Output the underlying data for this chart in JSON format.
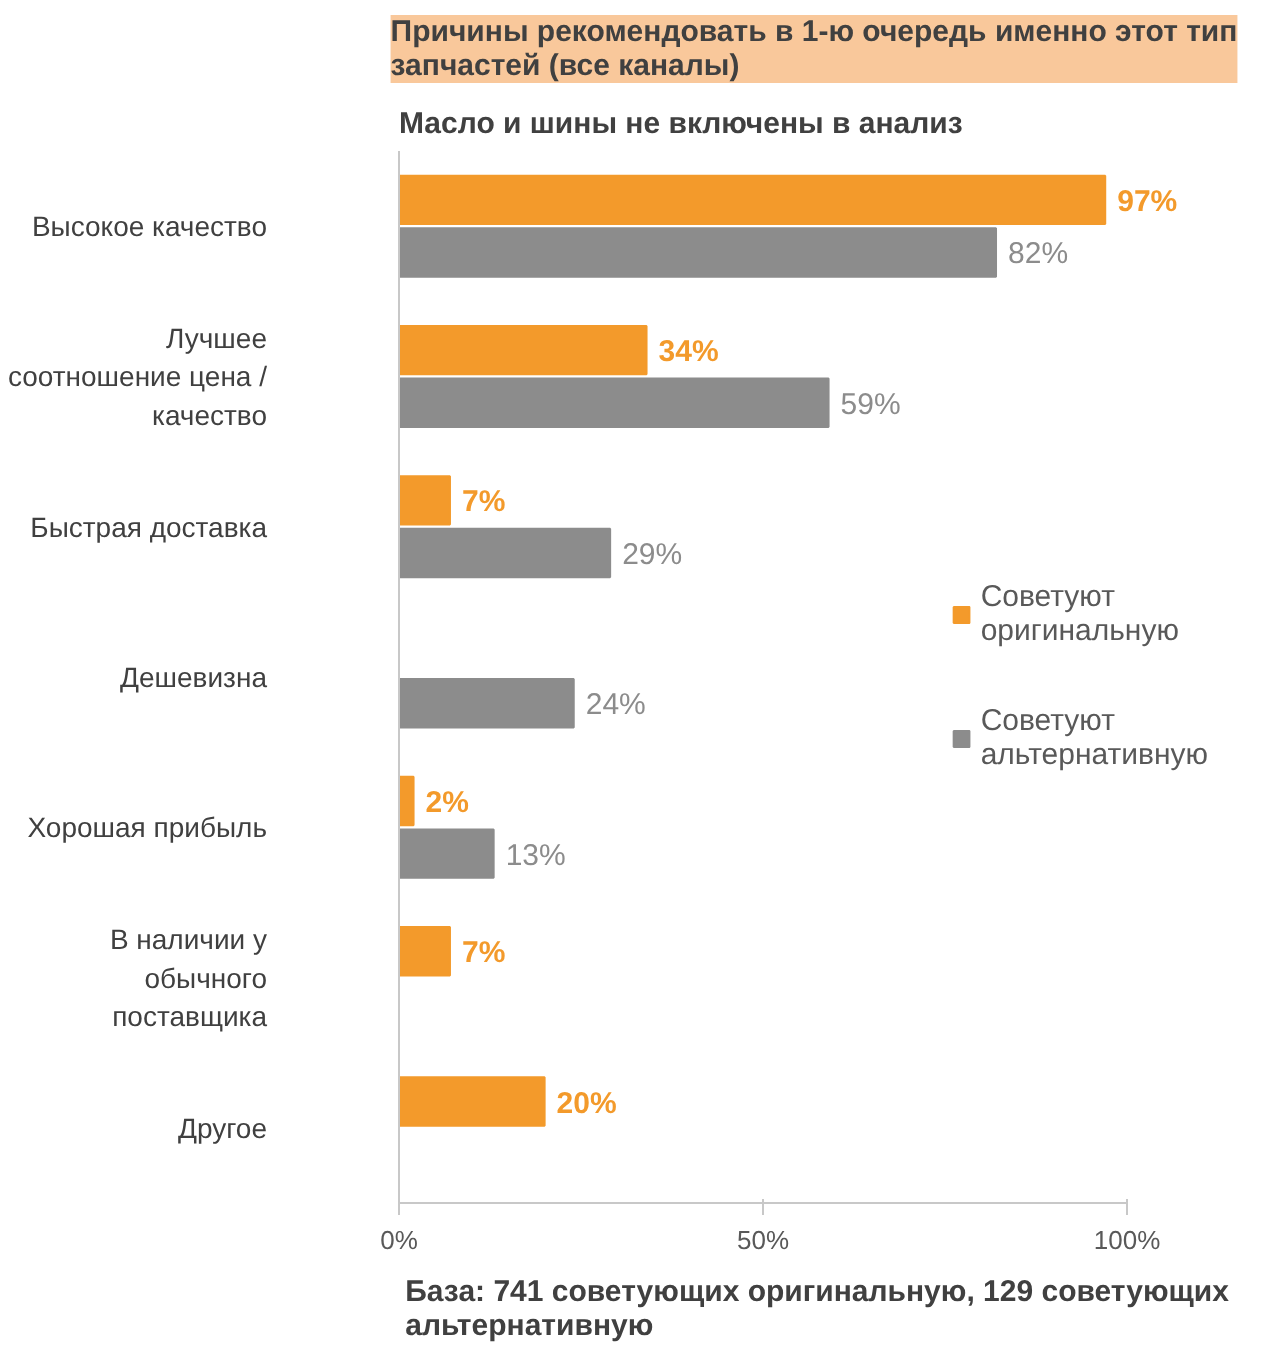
{
  "chart_data": {
    "type": "bar",
    "orientation": "horizontal",
    "title": "Причины рекомендовать в 1-ю очередь именно этот тип\nзапчастей (все каналы)",
    "subtitle": "Масло и шины не включены в анализ",
    "categories": [
      "Высокое качество",
      "Лучшее\nсоотношение цена /\nкачество",
      "Быстрая доставка",
      "Дешевизна",
      "Хорошая прибыль",
      "В наличии у\nобычного\nпоставщика",
      "Другое"
    ],
    "series": [
      {
        "name": "Советуют\nоригинальную",
        "color": "#f39a2b",
        "values": [
          97,
          34,
          7,
          null,
          2,
          7,
          20
        ],
        "value_labels": [
          "97%",
          "34%",
          "7%",
          null,
          "2%",
          "7%",
          "20%"
        ]
      },
      {
        "name": "Советуют\nальтернативную",
        "color": "#8c8c8c",
        "values": [
          82,
          59,
          29,
          24,
          13,
          null,
          null
        ],
        "value_labels": [
          "82%",
          "59%",
          "29%",
          "24%",
          "13%",
          null,
          null
        ]
      }
    ],
    "xlim": [
      0,
      100
    ],
    "xticks": [
      {
        "value": 0,
        "label": "0%"
      },
      {
        "value": 50,
        "label": "50%"
      },
      {
        "value": 100,
        "label": "100%"
      }
    ],
    "grid": false,
    "legend": "right",
    "annotations": [
      "База: 741 советующих оригинальную, 129 советующих\nальтернативную"
    ]
  }
}
